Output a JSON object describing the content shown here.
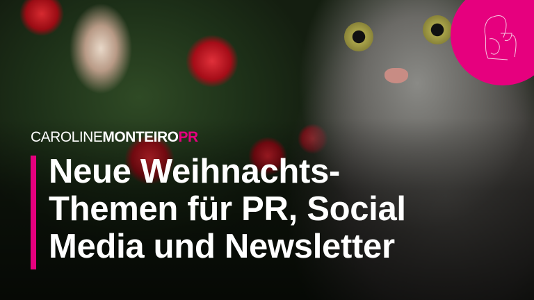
{
  "brand": {
    "logo_parts": [
      "CAROLINE",
      "MONTEIRO",
      "PR"
    ],
    "accent_color": "#e6007e"
  },
  "badge": {
    "icon": "woman-with-cup-line-drawing-icon",
    "color": "#e6007e"
  },
  "headline": {
    "lines": [
      "Neue Weihnachts-",
      "Themen für PR, Social",
      "Media und Newsletter"
    ]
  },
  "background": {
    "subject": "christmas-tree-and-cat-photo"
  }
}
